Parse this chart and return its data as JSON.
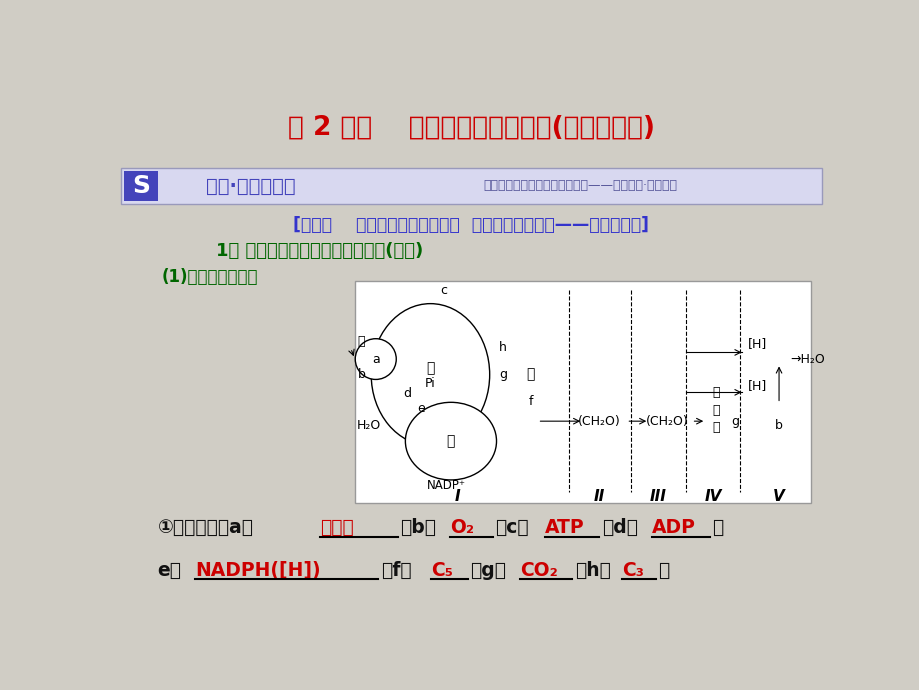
{
  "bg_color": "#d0cdc5",
  "title": "第 2 课时    光合作用与细胞呼吸(难点增分课)",
  "title_color": "#cc0000",
  "title_fontsize": 19,
  "banner_text": "课堂·三步破难点",
  "banner_subtext": "学什么、怎么学，增分点在哪里——针对提能·轻松补短",
  "banner_bg": "#d8d8f0",
  "banner_s_bg": "#4444bb",
  "step1_text": "[第一步    掌握原理、准确析图，  提高图文转换能力——明确是什么]",
  "step1_color": "#3333cc",
  "section1_text": "1． 光合作用与细胞呼吸过程图解(填空)",
  "section1_color": "#006600",
  "subsection_text": "(1)物质转变过程：",
  "subsection_color": "#006600"
}
